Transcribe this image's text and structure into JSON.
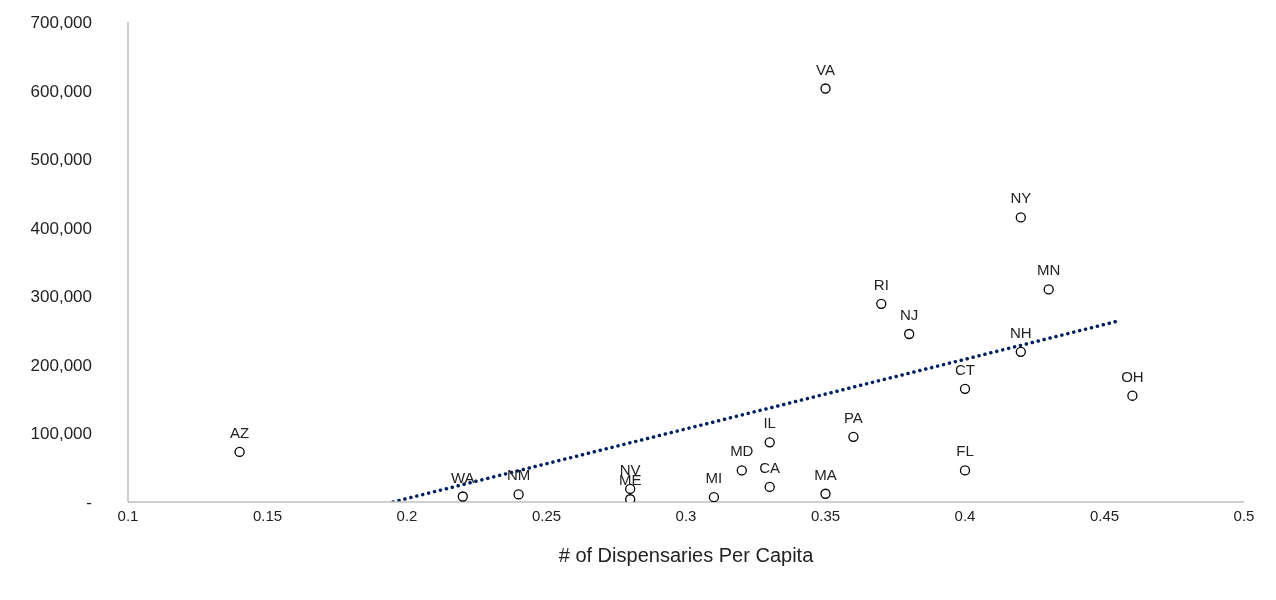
{
  "chart_data": {
    "type": "scatter",
    "xlabel": "# of Dispensaries Per Capita",
    "xlim": [
      0.1,
      0.5
    ],
    "xticks": [
      0.1,
      0.15,
      0.2,
      0.25,
      0.3,
      0.35,
      0.4,
      0.45,
      0.5
    ],
    "ylim": [
      0,
      700000
    ],
    "yticks": [
      {
        "value": 0,
        "label": "-"
      },
      {
        "value": 100000,
        "label": "100,000"
      },
      {
        "value": 200000,
        "label": "200,000"
      },
      {
        "value": 300000,
        "label": "300,000"
      },
      {
        "value": 400000,
        "label": "400,000"
      },
      {
        "value": 500000,
        "label": "500,000"
      },
      {
        "value": 600000,
        "label": "600,000"
      },
      {
        "value": 700000,
        "label": "700,000"
      }
    ],
    "grid": false,
    "legend": false,
    "series": [
      {
        "marker": "circle",
        "color": "#000000",
        "x": [
          0.14,
          0.22,
          0.24,
          0.28,
          0.28,
          0.31,
          0.32,
          0.33,
          0.33,
          0.35,
          0.36,
          0.35,
          0.37,
          0.38,
          0.4,
          0.4,
          0.42,
          0.43,
          0.42,
          0.46
        ],
        "values": [
          73000,
          8000,
          11000,
          19000,
          4000,
          7000,
          46000,
          22000,
          87000,
          12000,
          95000,
          603000,
          289000,
          245000,
          165000,
          46000,
          415000,
          310000,
          219000,
          155000
        ]
      },
      {
        "type": "line",
        "color": "#002060",
        "line_style": "dotted",
        "x": [
          0.195,
          0.455
        ],
        "values": [
          0,
          264000
        ]
      }
    ],
    "annotations": [
      {
        "text": "AZ",
        "x": 0.14,
        "y": 73000
      },
      {
        "text": "WA",
        "x": 0.22,
        "y": 8000
      },
      {
        "text": "NM",
        "x": 0.24,
        "y": 11000
      },
      {
        "text": "NV",
        "x": 0.28,
        "y": 19000
      },
      {
        "text": "ME",
        "x": 0.28,
        "y": 4000
      },
      {
        "text": "MI",
        "x": 0.31,
        "y": 7000
      },
      {
        "text": "MD",
        "x": 0.32,
        "y": 46000
      },
      {
        "text": "CA",
        "x": 0.33,
        "y": 22000
      },
      {
        "text": "IL",
        "x": 0.33,
        "y": 87000
      },
      {
        "text": "MA",
        "x": 0.35,
        "y": 12000
      },
      {
        "text": "PA",
        "x": 0.36,
        "y": 95000
      },
      {
        "text": "VA",
        "x": 0.35,
        "y": 603000
      },
      {
        "text": "RI",
        "x": 0.37,
        "y": 289000
      },
      {
        "text": "NJ",
        "x": 0.38,
        "y": 245000
      },
      {
        "text": "CT",
        "x": 0.4,
        "y": 165000
      },
      {
        "text": "FL",
        "x": 0.4,
        "y": 46000
      },
      {
        "text": "NY",
        "x": 0.42,
        "y": 415000
      },
      {
        "text": "MN",
        "x": 0.43,
        "y": 310000
      },
      {
        "text": "NH",
        "x": 0.42,
        "y": 219000
      },
      {
        "text": "OH",
        "x": 0.46,
        "y": 155000
      }
    ]
  }
}
